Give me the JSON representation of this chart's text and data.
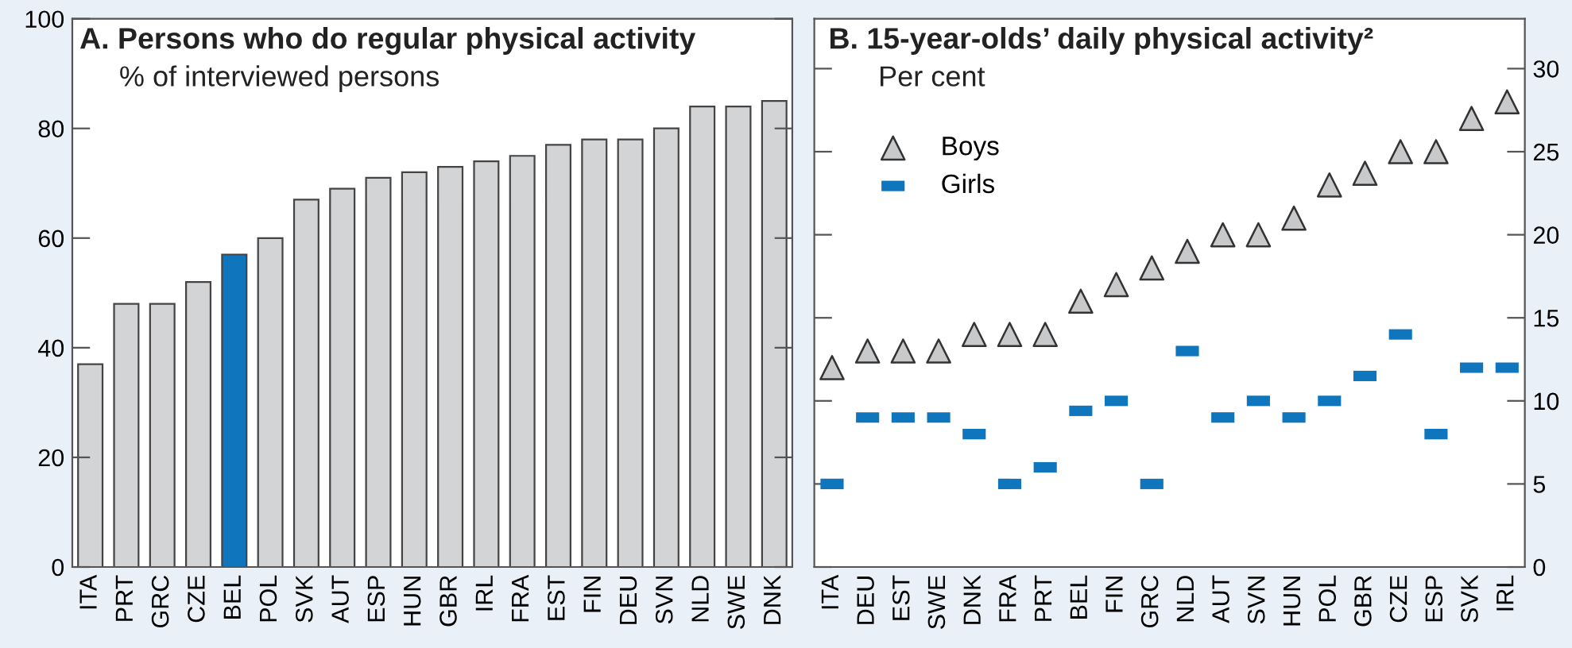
{
  "chart_data": [
    {
      "type": "bar",
      "title": "A. Persons who do regular physical activity",
      "subtitle": "% of interviewed persons",
      "categories": [
        "ITA",
        "PRT",
        "GRC",
        "CZE",
        "BEL",
        "POL",
        "SVK",
        "AUT",
        "ESP",
        "HUN",
        "GBR",
        "IRL",
        "FRA",
        "EST",
        "FIN",
        "DEU",
        "SVN",
        "NLD",
        "SWE",
        "DNK"
      ],
      "values": [
        37,
        48,
        48,
        52,
        57,
        60,
        67,
        69,
        71,
        72,
        73,
        74,
        75,
        77,
        78,
        78,
        80,
        84,
        84,
        85
      ],
      "colors": [
        "#d3d4d6",
        "#d3d4d6",
        "#d3d4d6",
        "#d3d4d6",
        "#0f75bc",
        "#d3d4d6",
        "#d3d4d6",
        "#d3d4d6",
        "#d3d4d6",
        "#d3d4d6",
        "#d3d4d6",
        "#d3d4d6",
        "#d3d4d6",
        "#d3d4d6",
        "#d3d4d6",
        "#d3d4d6",
        "#d3d4d6",
        "#d3d4d6",
        "#d3d4d6",
        "#d3d4d6"
      ],
      "ylim": [
        0,
        100
      ],
      "yticks": [
        0,
        20,
        40,
        60,
        80,
        100
      ],
      "grid": false,
      "legend": false
    },
    {
      "type": "scatter",
      "title": "B. 15-year-olds’ daily physical activity²",
      "subtitle": "Per cent",
      "categories": [
        "ITA",
        "DEU",
        "EST",
        "SWE",
        "DNK",
        "FRA",
        "PRT",
        "BEL",
        "FIN",
        "GRC",
        "NLD",
        "AUT",
        "SVN",
        "HUN",
        "POL",
        "GBR",
        "CZE",
        "ESP",
        "SVK",
        "IRL"
      ],
      "series": [
        {
          "name": "Boys",
          "color": "#c8c9cb",
          "marker": "triangle",
          "values": [
            12,
            13,
            13,
            13,
            14,
            14,
            14,
            16,
            17,
            18,
            19,
            20,
            20,
            21,
            23,
            23.7,
            25,
            25,
            27,
            28
          ]
        },
        {
          "name": "Girls",
          "color": "#0f75bc",
          "marker": "square",
          "values": [
            5,
            9,
            9,
            9,
            8,
            5,
            6,
            9.4,
            10,
            5,
            13,
            9,
            10,
            9,
            10,
            11.5,
            14,
            8,
            12,
            12
          ]
        }
      ],
      "ylim": [
        0,
        33
      ],
      "yticks": [
        0,
        5,
        10,
        15,
        20,
        25,
        30
      ],
      "grid": false,
      "legend": "top left"
    }
  ]
}
